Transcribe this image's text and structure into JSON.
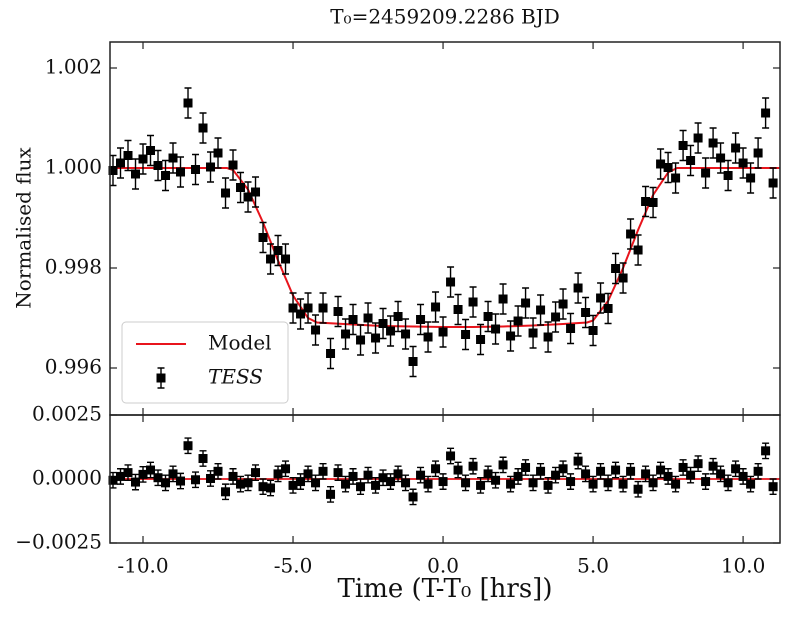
{
  "chart_data": [
    {
      "type": "scatter",
      "title": "T₀=2459209.2286 BJD",
      "ylabel": "Normalised flux",
      "xlim": [
        -11.1,
        11.23
      ],
      "ylim": [
        0.99506,
        1.00252
      ],
      "yticks": [
        1.002,
        {
          "value": 1.0,
          "label": "1.000"
        },
        0.998,
        0.996
      ],
      "legend": "lower left",
      "series": [
        {
          "name": "Model",
          "style": "line",
          "color": "#e8141c",
          "x": [
            -11.1,
            -10,
            -9,
            -8,
            -7.2,
            -7,
            -6.5,
            -6,
            -5.5,
            -5,
            -4.5,
            -4.2,
            -3,
            -2,
            -1,
            0,
            1,
            2,
            3,
            4,
            4.8,
            5,
            5.5,
            6,
            6.5,
            7,
            7.5,
            7.8,
            9,
            10,
            11.2
          ],
          "values": [
            1.0,
            1.0,
            1.0,
            1.0,
            1.0,
            0.99996,
            0.99957,
            0.99891,
            0.99815,
            0.99745,
            0.997,
            0.99691,
            0.99687,
            0.99684,
            0.99683,
            0.99682,
            0.99682,
            0.99683,
            0.99685,
            0.99688,
            0.99691,
            0.99695,
            0.99734,
            0.998,
            0.99876,
            0.99946,
            0.99991,
            1.0,
            1.0,
            1.0,
            1.0
          ]
        },
        {
          "name": "TESS",
          "style": "marker",
          "color": "#000000",
          "error": 0.0003,
          "x": [
            -11,
            -10.75,
            -10.5,
            -10.25,
            -10,
            -9.75,
            -9.5,
            -9.25,
            -9,
            -8.75,
            -8.5,
            -8.25,
            -8,
            -7.75,
            -7.5,
            -7.25,
            -7,
            -6.75,
            -6.5,
            -6.25,
            -6,
            -5.75,
            -5.5,
            -5.25,
            -5,
            -4.75,
            -4.5,
            -4.25,
            -4,
            -3.75,
            -3.5,
            -3.25,
            -3,
            -2.75,
            -2.5,
            -2.25,
            -2,
            -1.75,
            -1.5,
            -1.25,
            -1,
            -0.75,
            -0.5,
            -0.25,
            0,
            0.25,
            0.5,
            0.75,
            1,
            1.25,
            1.5,
            1.75,
            2,
            2.25,
            2.5,
            2.75,
            3,
            3.25,
            3.5,
            3.75,
            4,
            4.25,
            4.5,
            4.75,
            5,
            5.25,
            5.5,
            5.75,
            6,
            6.25,
            6.5,
            6.75,
            7,
            7.25,
            7.5,
            7.75,
            8,
            8.25,
            8.5,
            8.75,
            9,
            9.25,
            9.5,
            9.75,
            10,
            10.25,
            10.5,
            10.75,
            11
          ],
          "values": [
            0.99995,
            1.0001,
            1.00025,
            0.99988,
            1.00018,
            1.00035,
            1.00005,
            0.99985,
            1.0002,
            0.99992,
            1.0013,
            0.99997,
            1.0008,
            1.00002,
            1.0003,
            0.9995,
            1.00006,
            0.99961,
            0.99942,
            0.99952,
            0.99861,
            0.99818,
            0.99835,
            0.99818,
            0.9972,
            0.99708,
            0.9972,
            0.99676,
            0.9972,
            0.99629,
            0.99713,
            0.99668,
            0.99697,
            0.99656,
            0.997,
            0.9966,
            0.99689,
            0.99674,
            0.99703,
            0.99668,
            0.99613,
            0.99697,
            0.99662,
            0.99722,
            0.99672,
            0.99772,
            0.99717,
            0.99667,
            0.99732,
            0.99657,
            0.99703,
            0.99678,
            0.99738,
            0.99664,
            0.99694,
            0.9973,
            0.9967,
            0.99716,
            0.99662,
            0.99702,
            0.99728,
            0.99679,
            0.9976,
            0.99711,
            0.99675,
            0.9974,
            0.99719,
            0.99799,
            0.9978,
            0.99868,
            0.99836,
            0.99933,
            0.99931,
            1.00008,
            1.00001,
            0.9998,
            1.00045,
            1.00015,
            1.0006,
            0.9999,
            1.0005,
            1.0002,
            0.99985,
            1.0004,
            1.0001,
            0.9998,
            1.0003,
            1.0011,
            0.9997
          ]
        }
      ]
    },
    {
      "type": "scatter",
      "xlabel": "Time (T-T₀ [hrs])",
      "xticks": [
        {
          "value": -10,
          "label": "-10.0"
        },
        {
          "value": -5,
          "label": "-5.0"
        },
        {
          "value": 0,
          "label": "0.0"
        },
        {
          "value": 5,
          "label": "5.0"
        },
        {
          "value": 10,
          "label": "10.0"
        }
      ],
      "ylim": [
        -0.0025,
        0.0025
      ],
      "yticks": [
        0.0025,
        {
          "value": 0,
          "label": "0.0000"
        },
        {
          "value": -0.0025,
          "label": "−0.0025"
        }
      ],
      "hline": {
        "value": 0,
        "color": "#e8141c"
      },
      "series": [
        {
          "style": "marker",
          "color": "#000000",
          "error": 0.0003,
          "values": [
            -5e-05,
            0.0001,
            0.00025,
            -0.00012,
            0.00018,
            0.00035,
            5e-05,
            -0.00015,
            0.0002,
            -8e-05,
            0.0013,
            -3e-05,
            0.0008,
            2e-05,
            0.0003,
            -0.0005,
            0.0001,
            -0.0002,
            -0.00015,
            0.00025,
            -0.0003,
            -0.00035,
            0.0002,
            0.0004,
            -0.00025,
            -0.0001,
            0.0002,
            -0.00015,
            0.0003,
            -0.0006,
            0.00025,
            -0.0002,
            0.0001,
            -0.0003,
            0.00015,
            -0.00025,
            5e-05,
            -0.0001,
            0.0002,
            -0.00015,
            -0.0007,
            0.00015,
            -0.0002,
            0.0004,
            -0.0001,
            0.0009,
            0.00035,
            -0.00015,
            0.0005,
            -0.00025,
            0.0002,
            -5e-05,
            0.00055,
            -0.0002,
            0.0001,
            0.00045,
            -0.00015,
            0.0003,
            -0.00025,
            0.00015,
            0.0004,
            -0.0001,
            0.0007,
            0.0002,
            -0.0002,
            0.0003,
            -0.00015,
            0.00035,
            -0.0002,
            0.0003,
            -0.0004,
            0.0002,
            -0.00015,
            0.00035,
            0.0001,
            -0.0002,
            0.00045,
            0.00015,
            0.0006,
            -0.0001,
            0.0005,
            0.0002,
            -0.00015,
            0.0004,
            0.0001,
            -0.0002,
            0.0003,
            0.0011,
            -0.0003
          ]
        }
      ]
    }
  ]
}
